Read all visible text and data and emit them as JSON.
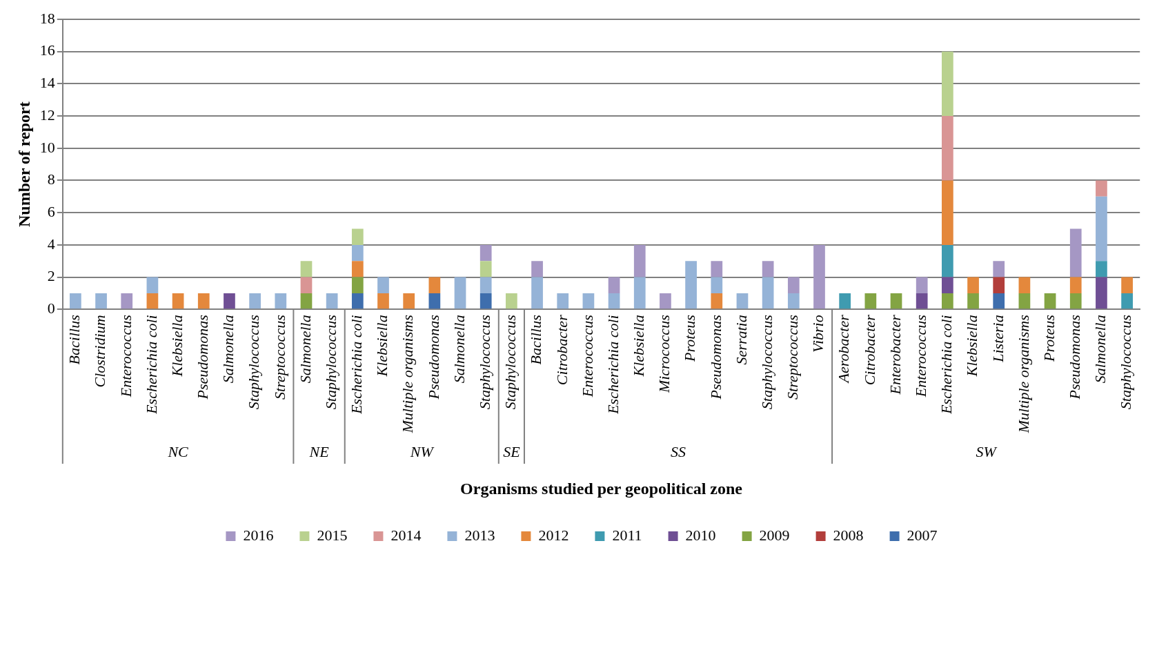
{
  "chart_data": {
    "type": "bar",
    "stacked": true,
    "xlabel": "Organisms studied per geopolitical zone",
    "ylabel": "Number of report",
    "categories": [
      "Bacillus",
      "Clostridium",
      "Enterococcus",
      "Escherichia coli",
      "Klebsiella",
      "Pseudomonas",
      "Salmonella",
      "Staphylococcus",
      "Streptococcus",
      "Salmonella",
      "Staphylococcus",
      "Escherichia coli",
      "Klebsiella",
      "Multiple organisms",
      "Pseudomonas",
      "Salmonella",
      "Staphylococcus",
      "Staphylococcus",
      "Bacillus",
      "Citrobacter",
      "Enterococcus",
      "Escherichia coli",
      "Klebsiella",
      "Micrococcus",
      "Proteus",
      "Pseudomonas",
      "Serratia",
      "Staphylococcus",
      "Streptococcus",
      "Vibrio",
      "Aerobacter",
      "Citrobacter",
      "Enterobacter",
      "Enterococcus",
      "Escherichia coli",
      "Klebsiella",
      "Listeria",
      "Multiple organisms",
      "Proteus",
      "Pseudomonas",
      "Salmonella",
      "Staphylococcus"
    ],
    "series": [
      {
        "name": "2007",
        "color": "#3e6ead",
        "values": [
          0,
          0,
          0,
          0,
          0,
          0,
          0,
          0,
          0,
          0,
          0,
          1,
          0,
          0,
          1,
          0,
          1,
          0,
          0,
          0,
          0,
          0,
          0,
          0,
          0,
          0,
          0,
          0,
          0,
          0,
          0,
          0,
          0,
          0,
          0,
          0,
          1,
          0,
          0,
          0,
          0,
          0
        ]
      },
      {
        "name": "2008",
        "color": "#b23e3b",
        "values": [
          0,
          0,
          0,
          0,
          0,
          0,
          0,
          0,
          0,
          0,
          0,
          0,
          0,
          0,
          0,
          0,
          0,
          0,
          0,
          0,
          0,
          0,
          0,
          0,
          0,
          0,
          0,
          0,
          0,
          0,
          0,
          0,
          0,
          0,
          0,
          0,
          1,
          0,
          0,
          0,
          0,
          0
        ]
      },
      {
        "name": "2009",
        "color": "#83a443",
        "values": [
          0,
          0,
          0,
          0,
          0,
          0,
          0,
          0,
          0,
          1,
          0,
          1,
          0,
          0,
          0,
          0,
          0,
          0,
          0,
          0,
          0,
          0,
          0,
          0,
          0,
          0,
          0,
          0,
          0,
          0,
          0,
          1,
          1,
          0,
          1,
          1,
          0,
          1,
          1,
          1,
          0,
          0
        ]
      },
      {
        "name": "2010",
        "color": "#6f4f94",
        "values": [
          0,
          0,
          0,
          0,
          0,
          0,
          1,
          0,
          0,
          0,
          0,
          0,
          0,
          0,
          0,
          0,
          0,
          0,
          0,
          0,
          0,
          0,
          0,
          0,
          0,
          0,
          0,
          0,
          0,
          0,
          0,
          0,
          0,
          1,
          1,
          0,
          0,
          0,
          0,
          0,
          2,
          0
        ]
      },
      {
        "name": "2011",
        "color": "#3f9bb0",
        "values": [
          0,
          0,
          0,
          0,
          0,
          0,
          0,
          0,
          0,
          0,
          0,
          0,
          0,
          0,
          0,
          0,
          0,
          0,
          0,
          0,
          0,
          0,
          0,
          0,
          0,
          0,
          0,
          0,
          0,
          0,
          1,
          0,
          0,
          0,
          2,
          0,
          0,
          0,
          0,
          0,
          1,
          1
        ]
      },
      {
        "name": "2012",
        "color": "#e4883c",
        "values": [
          0,
          0,
          0,
          1,
          1,
          1,
          0,
          0,
          0,
          0,
          0,
          1,
          1,
          1,
          1,
          0,
          0,
          0,
          0,
          0,
          0,
          0,
          0,
          0,
          0,
          1,
          0,
          0,
          0,
          0,
          0,
          0,
          0,
          0,
          4,
          1,
          0,
          1,
          0,
          1,
          0,
          1
        ]
      },
      {
        "name": "2013",
        "color": "#95b3d7",
        "values": [
          1,
          1,
          0,
          1,
          0,
          0,
          0,
          1,
          1,
          0,
          1,
          1,
          1,
          0,
          0,
          2,
          1,
          0,
          2,
          1,
          1,
          1,
          2,
          0,
          3,
          1,
          1,
          2,
          1,
          0,
          0,
          0,
          0,
          0,
          0,
          0,
          0,
          0,
          0,
          0,
          4,
          0
        ]
      },
      {
        "name": "2014",
        "color": "#d99594",
        "values": [
          0,
          0,
          0,
          0,
          0,
          0,
          0,
          0,
          0,
          1,
          0,
          0,
          0,
          0,
          0,
          0,
          0,
          0,
          0,
          0,
          0,
          0,
          0,
          0,
          0,
          0,
          0,
          0,
          0,
          0,
          0,
          0,
          0,
          0,
          4,
          0,
          0,
          0,
          0,
          0,
          1,
          0
        ]
      },
      {
        "name": "2015",
        "color": "#b9d18f",
        "values": [
          0,
          0,
          0,
          0,
          0,
          0,
          0,
          0,
          0,
          1,
          0,
          1,
          0,
          0,
          0,
          0,
          1,
          1,
          0,
          0,
          0,
          0,
          0,
          0,
          0,
          0,
          0,
          0,
          0,
          0,
          0,
          0,
          0,
          0,
          4,
          0,
          0,
          0,
          0,
          0,
          0,
          0
        ]
      },
      {
        "name": "2016",
        "color": "#a597c4",
        "values": [
          0,
          0,
          1,
          0,
          0,
          0,
          0,
          0,
          0,
          0,
          0,
          0,
          0,
          0,
          0,
          0,
          1,
          0,
          1,
          0,
          0,
          1,
          2,
          1,
          0,
          1,
          0,
          1,
          1,
          4,
          0,
          0,
          0,
          1,
          0,
          0,
          1,
          0,
          0,
          3,
          0,
          0
        ]
      }
    ],
    "ylim": [
      0,
      18
    ],
    "yticks": [
      0,
      2,
      4,
      6,
      8,
      10,
      12,
      14,
      16,
      18
    ],
    "grid": "y",
    "legend": "bottom",
    "annotations": [
      "NC",
      "NE",
      "NW",
      "SE",
      "SS",
      "SW"
    ]
  }
}
